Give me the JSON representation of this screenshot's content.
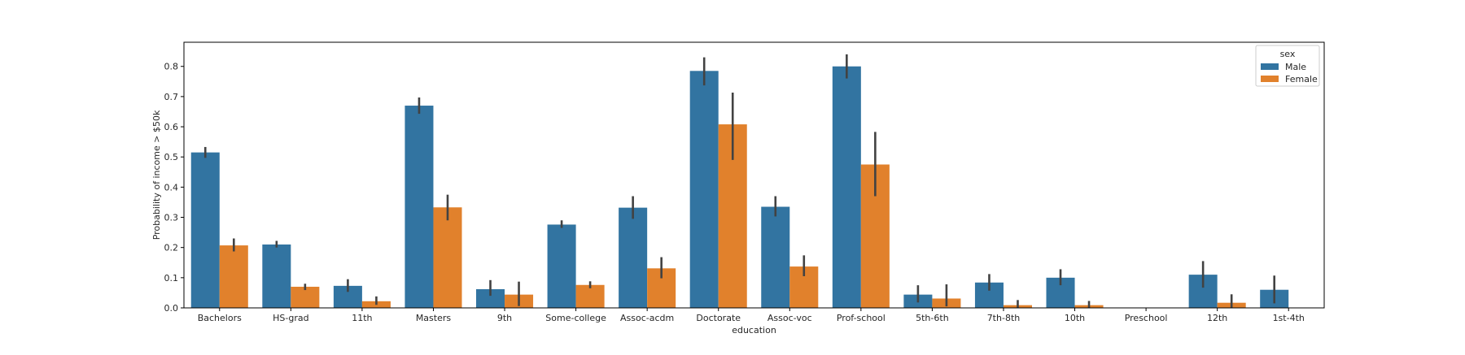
{
  "chart_data": {
    "type": "bar",
    "xlabel": "education",
    "ylabel": "Probability of income > $50k",
    "ylim": [
      0,
      0.88
    ],
    "yticks": [
      "0.0",
      "0.1",
      "0.2",
      "0.3",
      "0.4",
      "0.5",
      "0.6",
      "0.7",
      "0.8"
    ],
    "grid": false,
    "legend": {
      "title": "sex",
      "placement": "top-right"
    },
    "categories": [
      "Bachelors",
      "HS-grad",
      "11th",
      "Masters",
      "9th",
      "Some-college",
      "Assoc-acdm",
      "Doctorate",
      "Assoc-voc",
      "Prof-school",
      "5th-6th",
      "7th-8th",
      "10th",
      "Preschool",
      "12th",
      "1st-4th"
    ],
    "series": [
      {
        "name": "Male",
        "color": "#3274a1",
        "values": [
          0.515,
          0.21,
          0.073,
          0.67,
          0.062,
          0.276,
          0.332,
          0.785,
          0.335,
          0.8,
          0.044,
          0.084,
          0.1,
          0.0,
          0.11,
          0.06
        ],
        "ci_low": [
          0.497,
          0.2,
          0.053,
          0.643,
          0.04,
          0.265,
          0.295,
          0.737,
          0.303,
          0.76,
          0.018,
          0.057,
          0.075,
          0.0,
          0.067,
          0.015
        ],
        "ci_high": [
          0.533,
          0.222,
          0.095,
          0.697,
          0.092,
          0.29,
          0.37,
          0.83,
          0.37,
          0.84,
          0.075,
          0.112,
          0.128,
          0.0,
          0.155,
          0.107
        ]
      },
      {
        "name": "Female",
        "color": "#e1812c",
        "values": [
          0.207,
          0.07,
          0.022,
          0.333,
          0.044,
          0.076,
          0.131,
          0.608,
          0.137,
          0.475,
          0.031,
          0.009,
          0.009,
          0.0,
          0.017,
          null
        ],
        "ci_low": [
          0.187,
          0.059,
          0.01,
          0.29,
          0.006,
          0.065,
          0.098,
          0.49,
          0.105,
          0.37,
          0.005,
          0.0,
          0.0,
          0.0,
          0.0,
          null
        ],
        "ci_high": [
          0.23,
          0.08,
          0.038,
          0.375,
          0.087,
          0.088,
          0.168,
          0.713,
          0.174,
          0.583,
          0.078,
          0.026,
          0.023,
          0.0,
          0.045,
          null
        ]
      }
    ]
  }
}
